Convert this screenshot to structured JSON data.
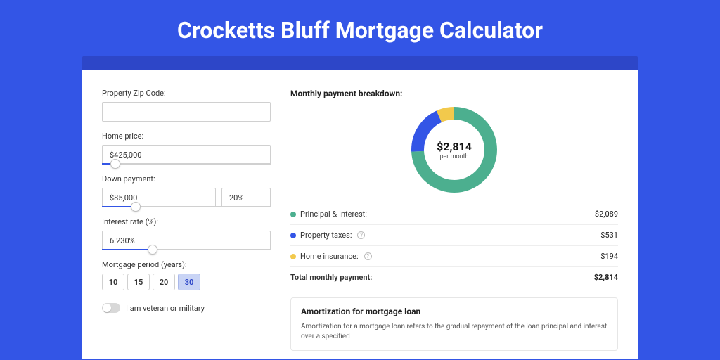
{
  "title": "Crocketts Bluff Mortgage Calculator",
  "colors": {
    "page_bg": "#3355e6",
    "accent": "#2d46c8",
    "card_bg": "#ffffff",
    "donut_principal": "#4caf8f",
    "donut_taxes": "#3355e6",
    "donut_insurance": "#f2c94c",
    "border": "#d0d0d0"
  },
  "form": {
    "zip": {
      "label": "Property Zip Code:",
      "value": ""
    },
    "home_price": {
      "label": "Home price:",
      "value": "$425,000",
      "slider_pct": 8
    },
    "down_payment": {
      "label": "Down payment:",
      "value": "$85,000",
      "pct_value": "20%",
      "slider_pct": 20
    },
    "interest_rate": {
      "label": "Interest rate (%):",
      "value": "6.230%",
      "slider_pct": 30
    },
    "period": {
      "label": "Mortgage period (years):",
      "options": [
        "10",
        "15",
        "20",
        "30"
      ],
      "selected": "30"
    },
    "veteran": {
      "label": "I am veteran or military",
      "checked": false
    }
  },
  "breakdown": {
    "title": "Monthly payment breakdown:",
    "donut": {
      "center_amount": "$2,814",
      "center_sub": "per month",
      "segments": [
        {
          "key": "principal",
          "label": "Principal & Interest:",
          "value": "$2,089",
          "amount": 2089,
          "color": "#4caf8f",
          "has_info": false
        },
        {
          "key": "taxes",
          "label": "Property taxes:",
          "value": "$531",
          "amount": 531,
          "color": "#3355e6",
          "has_info": true
        },
        {
          "key": "insurance",
          "label": "Home insurance:",
          "value": "$194",
          "amount": 194,
          "color": "#f2c94c",
          "has_info": true
        }
      ],
      "stroke_width": 18,
      "radius": 52
    },
    "total": {
      "label": "Total monthly payment:",
      "value": "$2,814"
    }
  },
  "amortization": {
    "title": "Amortization for mortgage loan",
    "text": "Amortization for a mortgage loan refers to the gradual repayment of the loan principal and interest over a specified"
  }
}
